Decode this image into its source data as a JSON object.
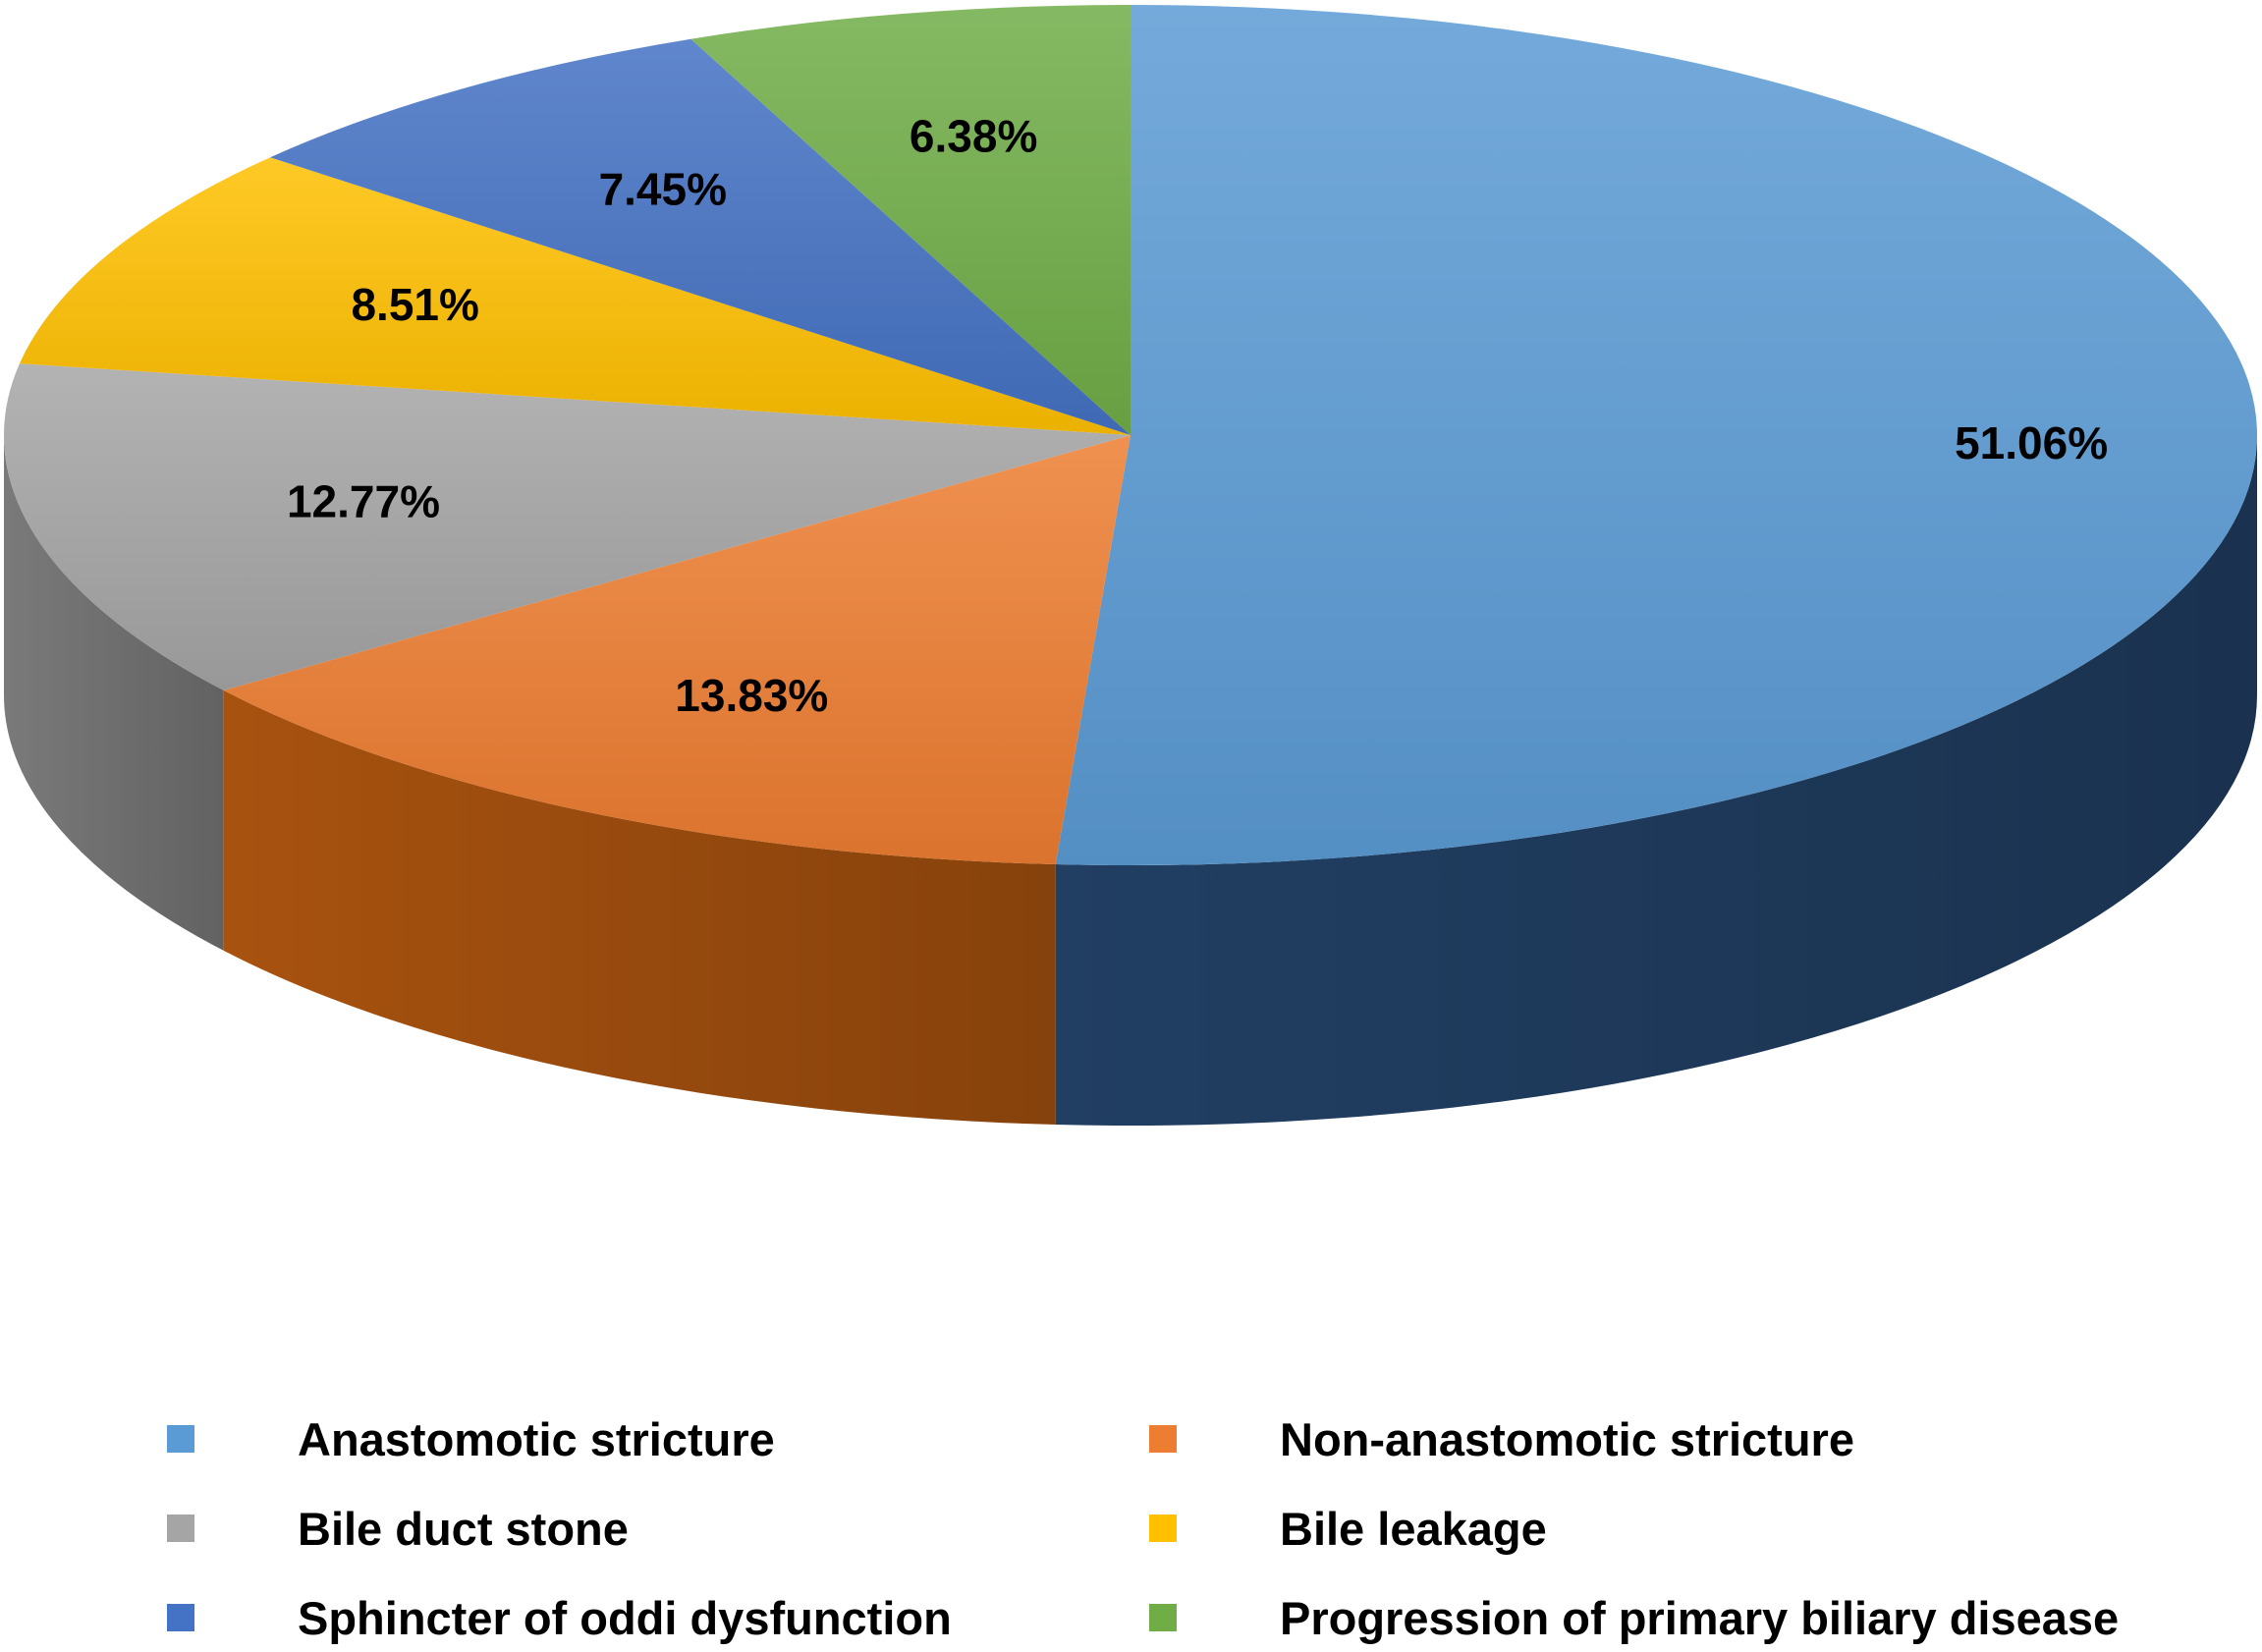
{
  "chart_data": {
    "type": "pie",
    "style": "3d-tilted",
    "categories": [
      "Anastomotic stricture",
      "Non-anastomotic stricture",
      "Bile duct stone",
      "Bile leakage",
      "Sphincter of oddi dysfunction",
      "Progression of primary biliary disease"
    ],
    "values": [
      51.06,
      13.83,
      12.77,
      8.51,
      7.45,
      6.38
    ],
    "data_labels": [
      "51.06%",
      "13.83%",
      "12.77%",
      "8.51%",
      "7.45%",
      "6.38%"
    ],
    "colors": [
      "#5b9bd5",
      "#ed7d31",
      "#a5a5a5",
      "#ffc000",
      "#4472c4",
      "#70ad47"
    ],
    "side_colors": [
      "#213f63",
      "#a8520f",
      "#7a7a7a",
      "#b38600",
      "#2a4a8a",
      "#4a7a2c"
    ],
    "legend": {
      "position": "bottom",
      "items": [
        {
          "label": "Anastomotic stricture",
          "color": "#5b9bd5"
        },
        {
          "label": "Non-anastomotic stricture",
          "color": "#ed7d31"
        },
        {
          "label": "Bile duct stone",
          "color": "#a5a5a5"
        },
        {
          "label": "Bile leakage",
          "color": "#ffc000"
        },
        {
          "label": "Sphincter of oddi dysfunction",
          "color": "#4472c4"
        },
        {
          "label": "Progression of primary biliary disease",
          "color": "#70ad47"
        }
      ]
    }
  }
}
